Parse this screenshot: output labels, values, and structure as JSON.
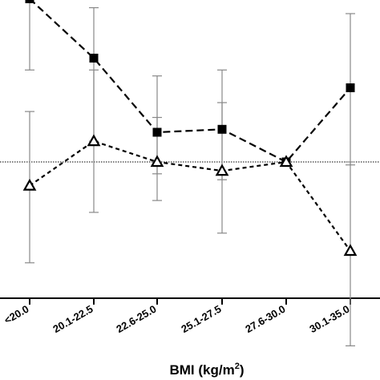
{
  "chart_data": {
    "type": "line",
    "categories": [
      "<20.0",
      "20.1-22.5",
      "22.6-25.0",
      "25.1-27.5",
      "27.6-30.0",
      "30.1-35.0"
    ],
    "xlabel": "BMI (kg/m",
    "xlabel_superscript": "2",
    "xlabel_close": ")",
    "ylim": [
      0.4,
      2.0
    ],
    "reference_line": 1.0,
    "grid": false,
    "series": [
      {
        "marker": "square-filled",
        "line_style": "long-dash",
        "color": "#000000",
        "values": [
          1.55,
          1.35,
          1.1,
          1.11,
          1.0,
          1.25
        ],
        "error_low": [
          1.31,
          1.07,
          0.96,
          0.94,
          1.0,
          0.99
        ],
        "error_high": [
          1.76,
          1.52,
          1.29,
          1.31,
          1.0,
          1.5
        ]
      },
      {
        "marker": "triangle-open",
        "line_style": "short-dash",
        "color": "#000000",
        "values": [
          0.92,
          1.07,
          1.0,
          0.97,
          1.0,
          0.7
        ],
        "error_low": [
          0.66,
          0.83,
          0.87,
          0.76,
          1.0,
          0.38
        ],
        "error_high": [
          1.17,
          1.31,
          1.15,
          1.2,
          1.0,
          1.0
        ]
      }
    ]
  }
}
